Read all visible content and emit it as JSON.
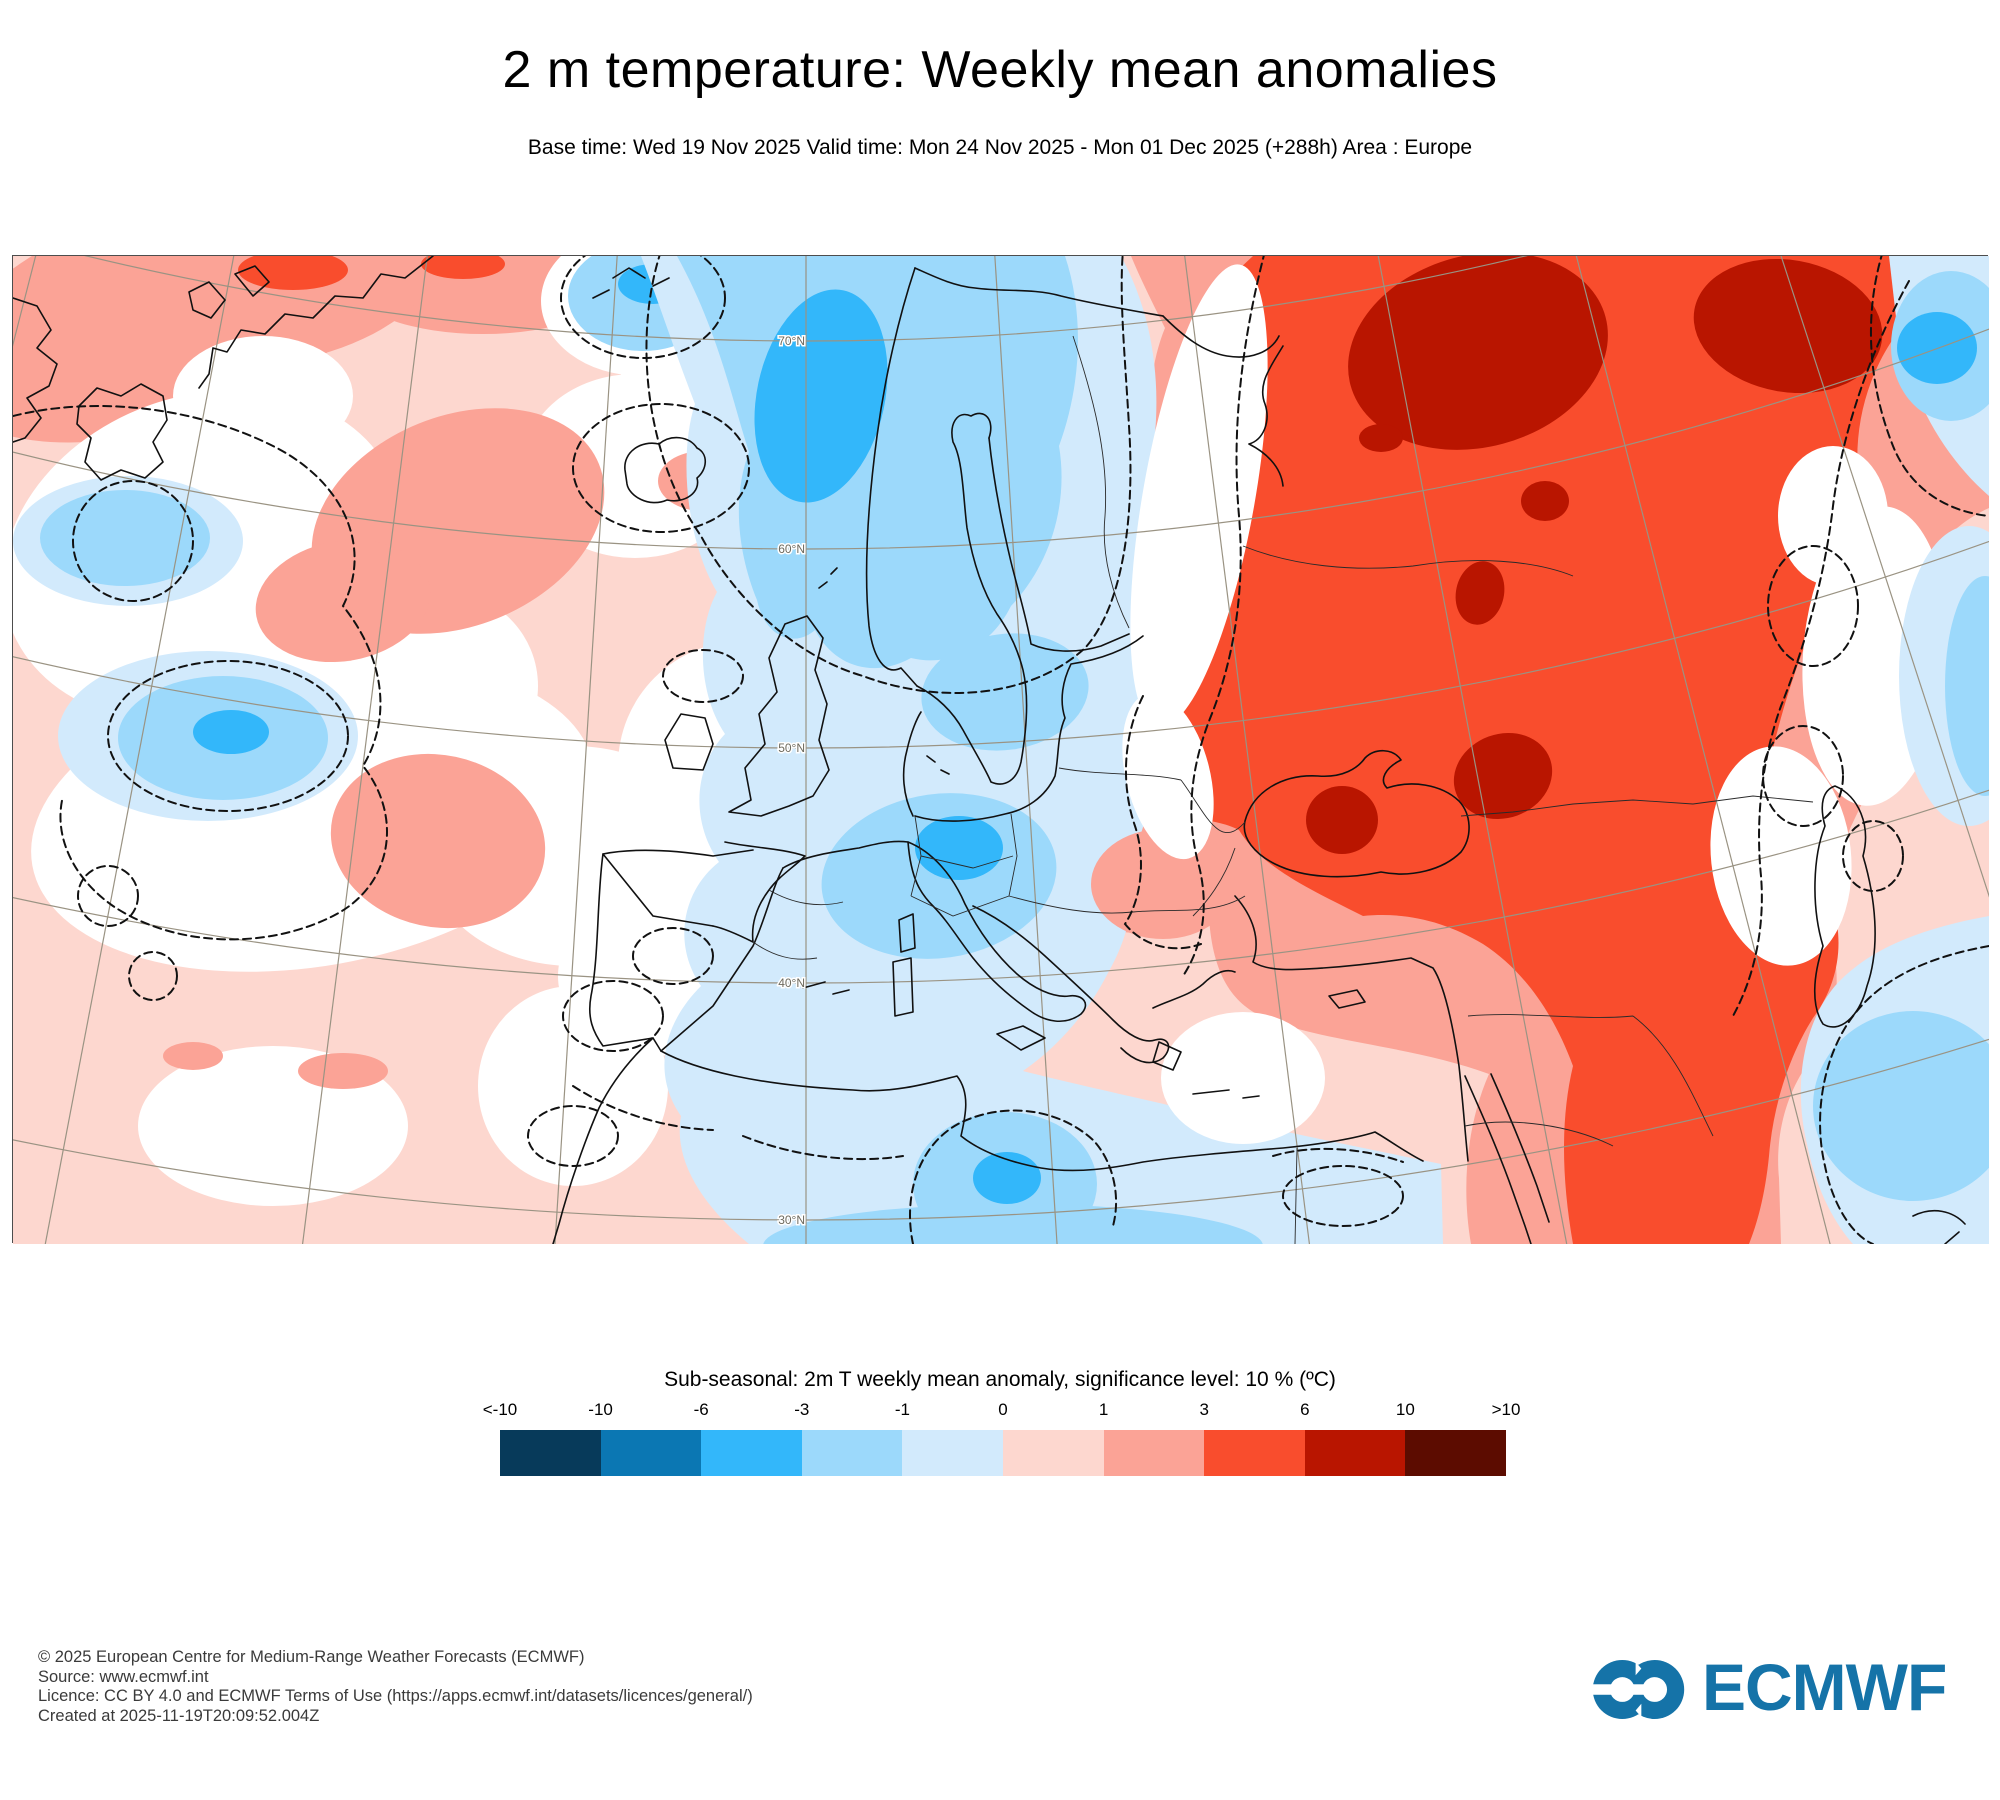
{
  "header": {
    "title": "2 m temperature: Weekly mean anomalies",
    "subtitle": "Base time: Wed 19 Nov 2025 Valid time: Mon 24 Nov 2025 - Mon 01 Dec 2025 (+288h) Area : Europe"
  },
  "map": {
    "lat_labels": [
      "70°N",
      "60°N",
      "50°N",
      "40°N",
      "30°N"
    ],
    "field_description": "2m temperature weekly mean anomaly field over Europe: cold (blue) anomaly over Scandinavia and central Europe, strong warm (red) anomaly over eastern Europe and Russia, weak warm anomaly over the Atlantic"
  },
  "legend": {
    "label": "Sub-seasonal: 2m T weekly mean anomaly, significance level: 10 % (ºC)",
    "ticks": [
      "<-10",
      "-10",
      "-6",
      "-3",
      "-1",
      "0",
      "1",
      "3",
      "6",
      "10",
      ">10"
    ],
    "colors": [
      "#073a5a",
      "#0b77b3",
      "#33b7fa",
      "#9cd9fb",
      "#d2eafc",
      "#fdd7cf",
      "#fba396",
      "#f94d2d",
      "#b91500",
      "#5c0c00"
    ]
  },
  "footer": {
    "lines": [
      "© 2025 European Centre for Medium-Range Weather Forecasts (ECMWF)",
      "Source: www.ecmwf.int",
      "Licence: CC BY 4.0 and ECMWF Terms of Use (https://apps.ecmwf.int/datasets/licences/general/)",
      "Created at 2025-11-19T20:09:52.004Z"
    ]
  },
  "logo": {
    "text": "ECMWF",
    "color": "#1573a8"
  }
}
